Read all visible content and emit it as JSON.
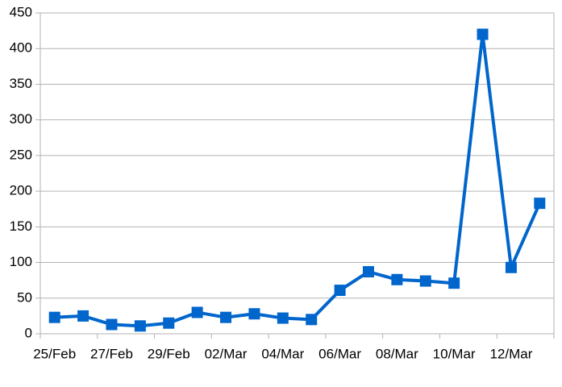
{
  "chart_data": {
    "type": "line",
    "categories": [
      "25/Feb",
      null,
      "27/Feb",
      null,
      "29/Feb",
      null,
      "02/Mar",
      null,
      "04/Mar",
      null,
      "06/Mar",
      null,
      "08/Mar",
      null,
      "10/Mar",
      null,
      "12/Mar",
      null
    ],
    "series": [
      {
        "name": null,
        "color": "#0066cc",
        "values": [
          23,
          25,
          13,
          11,
          15,
          30,
          23,
          28,
          22,
          20,
          61,
          87,
          76,
          74,
          71,
          420,
          93,
          183
        ]
      }
    ],
    "ylim": [
      0,
      450
    ],
    "yticks": [
      0,
      50,
      100,
      150,
      200,
      250,
      300,
      350,
      400,
      450
    ],
    "grid": true
  }
}
